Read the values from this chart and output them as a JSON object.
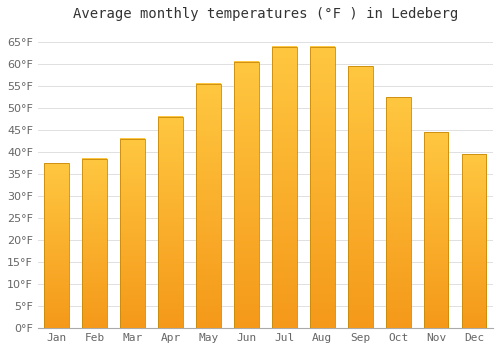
{
  "title": "Average monthly temperatures (°F ) in Ledeberg",
  "months": [
    "Jan",
    "Feb",
    "Mar",
    "Apr",
    "May",
    "Jun",
    "Jul",
    "Aug",
    "Sep",
    "Oct",
    "Nov",
    "Dec"
  ],
  "values": [
    37.5,
    38.5,
    43.0,
    48.0,
    55.5,
    60.5,
    64.0,
    64.0,
    59.5,
    52.5,
    44.5,
    39.5
  ],
  "bar_color_top": "#FFAA00",
  "bar_color_bottom": "#F5A623",
  "bar_edge_color": "#C8890A",
  "background_color": "#FFFFFF",
  "grid_color": "#E0E0E0",
  "ylim": [
    0,
    68
  ],
  "yticks": [
    0,
    5,
    10,
    15,
    20,
    25,
    30,
    35,
    40,
    45,
    50,
    55,
    60,
    65
  ],
  "title_fontsize": 10,
  "tick_fontsize": 8,
  "title_color": "#333333",
  "tick_color": "#666666",
  "bar_width": 0.65
}
